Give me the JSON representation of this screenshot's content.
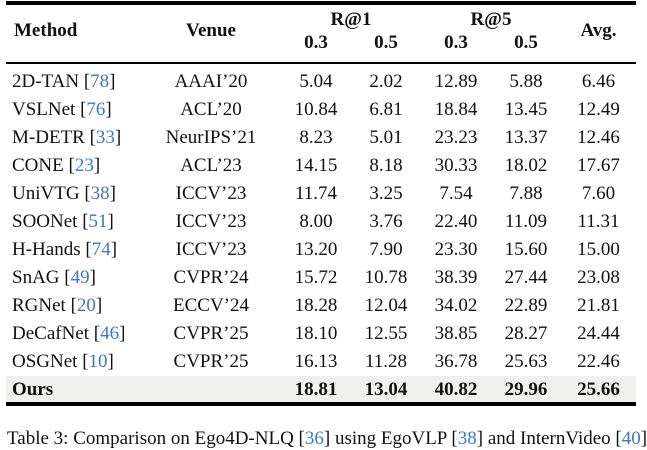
{
  "table": {
    "header": {
      "method": "Method",
      "venue": "Venue",
      "group_r1": "R@1",
      "group_r5": "R@5",
      "avg": "Avg.",
      "thresholds": [
        "0.3",
        "0.5",
        "0.3",
        "0.5"
      ]
    },
    "citation_brackets": {
      "open": "[",
      "close": "]"
    },
    "rows": [
      {
        "method": "2D-TAN",
        "cite": "78",
        "venue": "AAAI’20",
        "values": [
          "5.04",
          "2.02",
          "12.89",
          "5.88",
          "6.46"
        ],
        "highlight": false
      },
      {
        "method": "VSLNet",
        "cite": "76",
        "venue": "ACL’20",
        "values": [
          "10.84",
          "6.81",
          "18.84",
          "13.45",
          "12.49"
        ],
        "highlight": false
      },
      {
        "method": "M-DETR",
        "cite": "33",
        "venue": "NeurIPS’21",
        "values": [
          "8.23",
          "5.01",
          "23.23",
          "13.37",
          "12.46"
        ],
        "highlight": false
      },
      {
        "method": "CONE",
        "cite": "23",
        "venue": "ACL’23",
        "values": [
          "14.15",
          "8.18",
          "30.33",
          "18.02",
          "17.67"
        ],
        "highlight": false
      },
      {
        "method": "UniVTG",
        "cite": "38",
        "venue": "ICCV’23",
        "values": [
          "11.74",
          "3.25",
          "7.54",
          "7.88",
          "7.60"
        ],
        "highlight": false
      },
      {
        "method": "SOONet",
        "cite": "51",
        "venue": "ICCV’23",
        "values": [
          "8.00",
          "3.76",
          "22.40",
          "11.09",
          "11.31"
        ],
        "highlight": false
      },
      {
        "method": "H-Hands",
        "cite": "74",
        "venue": "ICCV’23",
        "values": [
          "13.20",
          "7.90",
          "23.30",
          "15.60",
          "15.00"
        ],
        "highlight": false
      },
      {
        "method": "SnAG",
        "cite": "49",
        "venue": "CVPR’24",
        "values": [
          "15.72",
          "10.78",
          "38.39",
          "27.44",
          "23.08"
        ],
        "highlight": false
      },
      {
        "method": "RGNet",
        "cite": "20",
        "venue": "ECCV’24",
        "values": [
          "18.28",
          "12.04",
          "34.02",
          "22.89",
          "21.81"
        ],
        "highlight": false
      },
      {
        "method": "DeCafNet",
        "cite": "46",
        "venue": "CVPR’25",
        "values": [
          "18.10",
          "12.55",
          "38.85",
          "28.27",
          "24.44"
        ],
        "highlight": false
      },
      {
        "method": "OSGNet",
        "cite": "10",
        "venue": "CVPR’25",
        "values": [
          "16.13",
          "11.28",
          "36.78",
          "25.63",
          "22.46"
        ],
        "highlight": false
      },
      {
        "method": "Ours",
        "cite": null,
        "venue": "",
        "values": [
          "18.81",
          "13.04",
          "40.82",
          "29.96",
          "25.66"
        ],
        "highlight": true
      }
    ]
  },
  "caption": {
    "parts": [
      {
        "text": "Table 3: Comparison on Ego4D-NLQ [",
        "style": "normal"
      },
      {
        "text": "36",
        "style": "cite"
      },
      {
        "text": "] using EgoVLP [",
        "style": "normal"
      },
      {
        "text": "38",
        "style": "cite"
      },
      {
        "text": "] and InternVideo [",
        "style": "normal"
      },
      {
        "text": "40",
        "style": "cite"
      },
      {
        "text": "]",
        "style": "normal"
      }
    ]
  },
  "colors": {
    "cite_blue": "#4277bc",
    "highlight_row_bg": "#f0f0ee",
    "rule_black": "#000000",
    "text": "#111111"
  }
}
